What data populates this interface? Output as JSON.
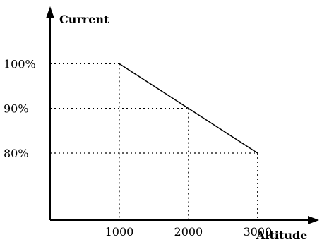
{
  "chart_data": {
    "type": "line",
    "title": "",
    "xlabel": "Altitude",
    "ylabel": "Current",
    "x": [
      1000,
      2000,
      3000
    ],
    "series": [
      {
        "values": [
          100,
          90,
          80
        ]
      }
    ],
    "x_ticks": [
      "1000",
      "2000",
      "3000"
    ],
    "y_ticks": [
      "80%",
      "90%",
      "100%"
    ],
    "xlim": [
      0,
      3400
    ],
    "ylim": [
      65,
      110
    ],
    "grid": "dotted guide lines to each data point",
    "legend": "none",
    "line_color": "#000000"
  }
}
